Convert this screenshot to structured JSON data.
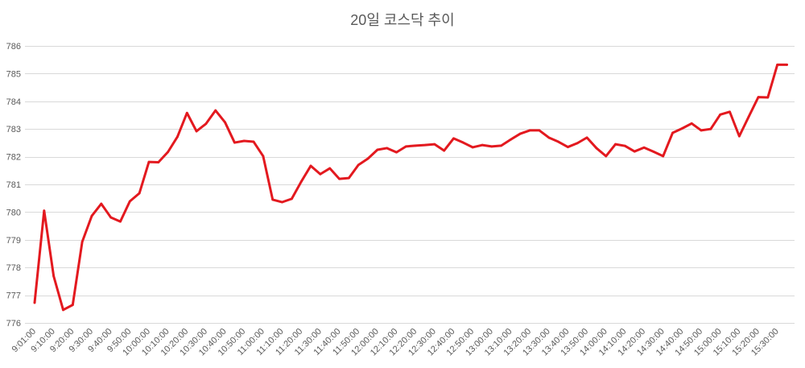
{
  "chart_data": {
    "type": "line",
    "title": "20일 코스닥 추이",
    "ylim": [
      776,
      786
    ],
    "y_ticks": [
      776,
      777,
      778,
      779,
      780,
      781,
      782,
      783,
      784,
      785,
      786
    ],
    "x_tick_labels": [
      "9:01:00",
      "9:10:00",
      "9:20:00",
      "9:30:00",
      "9:40:00",
      "9:50:00",
      "10:00:00",
      "10:10:00",
      "10:20:00",
      "10:30:00",
      "10:40:00",
      "10:50:00",
      "11:00:00",
      "11:10:00",
      "11:20:00",
      "11:30:00",
      "11:40:00",
      "11:50:00",
      "12:00:00",
      "12:10:00",
      "12:20:00",
      "12:30:00",
      "12:40:00",
      "12:50:00",
      "13:00:00",
      "13:10:00",
      "13:20:00",
      "13:30:00",
      "13:40:00",
      "13:50:00",
      "14:00:00",
      "14:10:00",
      "14:20:00",
      "14:30:00",
      "14:40:00",
      "14:50:00",
      "15:00:00",
      "15:10:00",
      "15:20:00",
      "15:30:00"
    ],
    "series": [
      {
        "color": "#e3191f",
        "values": [
          776.73,
          780.05,
          777.69,
          776.47,
          776.65,
          778.93,
          779.86,
          780.3,
          779.81,
          779.66,
          780.39,
          780.68,
          781.81,
          781.8,
          782.17,
          782.72,
          783.58,
          782.92,
          783.19,
          783.67,
          783.24,
          782.51,
          782.57,
          782.54,
          782.02,
          780.45,
          780.36,
          780.48,
          781.1,
          781.67,
          781.37,
          781.58,
          781.2,
          781.23,
          781.7,
          781.93,
          782.25,
          782.31,
          782.16,
          782.37,
          782.4,
          782.42,
          782.45,
          782.22,
          782.66,
          782.51,
          782.34,
          782.42,
          782.37,
          782.4,
          782.62,
          782.83,
          782.95,
          782.95,
          782.69,
          782.54,
          782.35,
          782.49,
          782.69,
          782.31,
          782.02,
          782.45,
          782.39,
          782.19,
          782.33,
          782.18,
          782.02,
          782.86,
          783.02,
          783.2,
          782.95,
          783.0,
          783.52,
          783.62,
          782.74,
          783.45,
          784.15,
          784.14,
          785.32,
          785.32
        ]
      }
    ],
    "grid": {
      "horizontal": true,
      "vertical": false
    }
  },
  "colors": {
    "grid": "#d9d9d9",
    "text": "#595959",
    "background": "#ffffff"
  }
}
